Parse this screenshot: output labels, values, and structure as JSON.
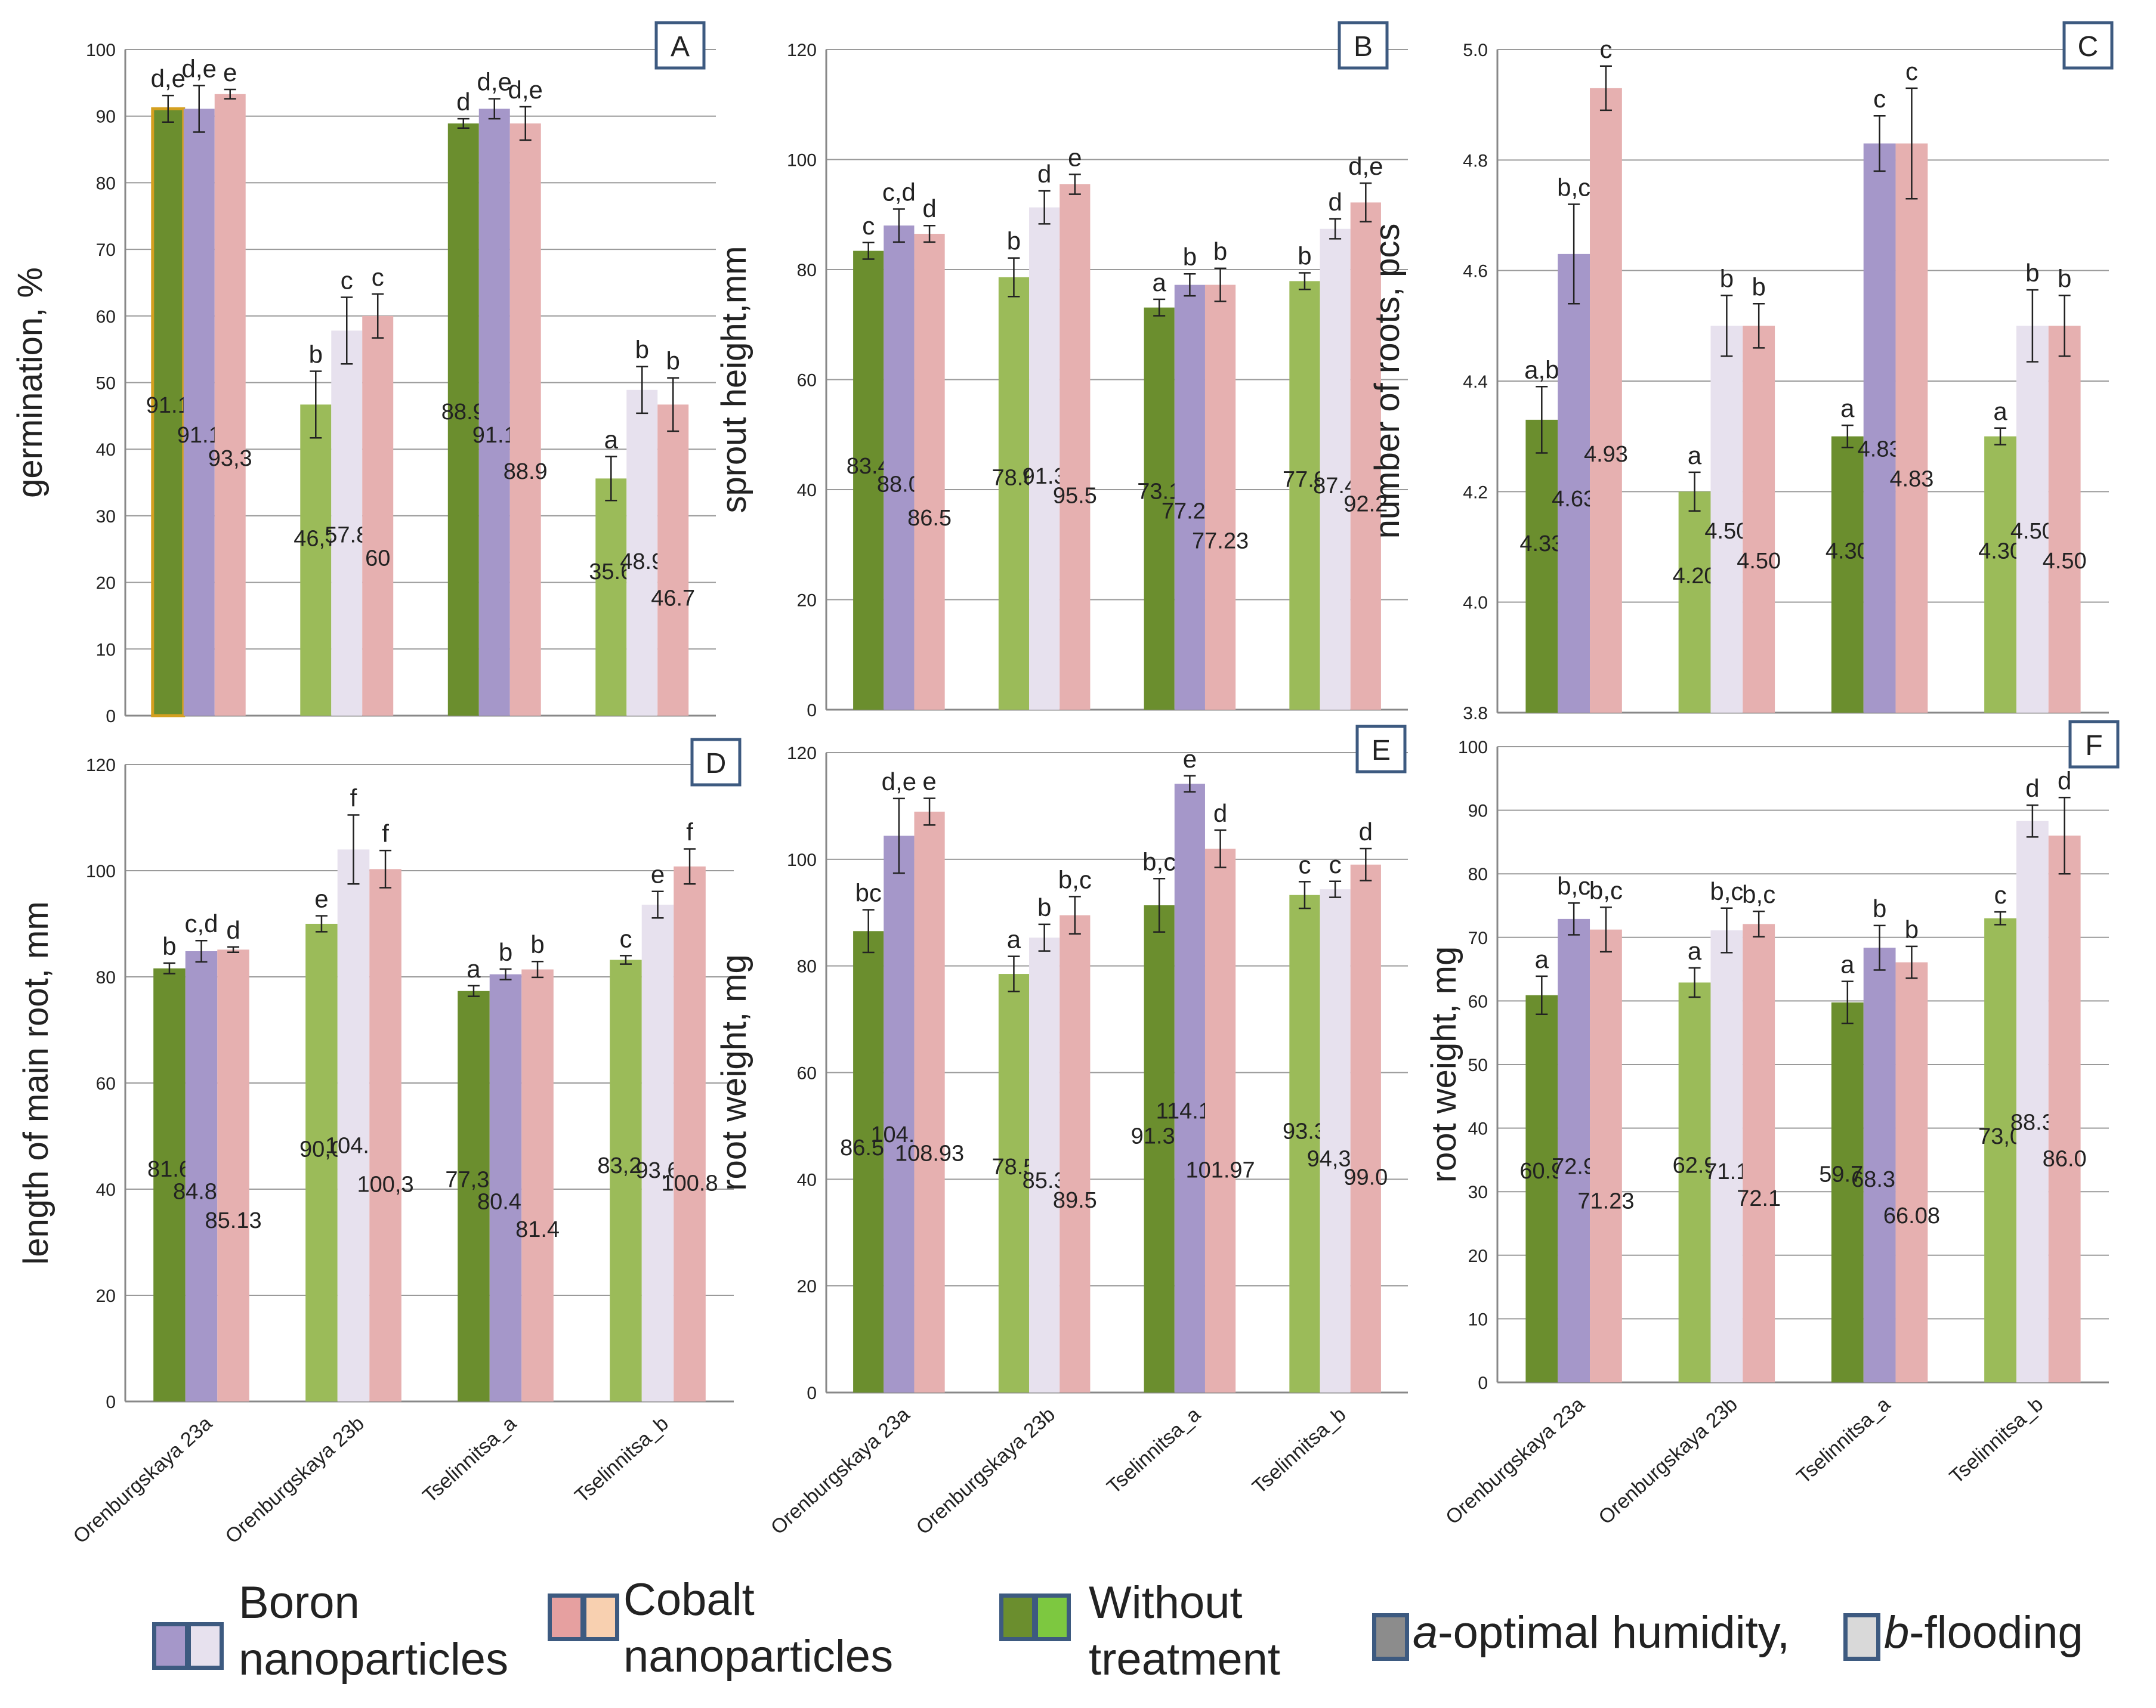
{
  "chart_data": [
    {
      "panel": "A",
      "type": "bar",
      "ylabel": "germination, %",
      "ylim": [
        0,
        100
      ],
      "yticks": [
        0,
        10,
        20,
        30,
        40,
        50,
        60,
        70,
        80,
        90,
        100
      ],
      "categories": [
        "Orenburgskaya 23a",
        "Orenburgskaya 23b",
        "Tselinnitsa_a",
        "Tselinnitsa_b"
      ],
      "series": [
        {
          "name": "Without treatment",
          "values": [
            91.1,
            46.7,
            88.9,
            35.6
          ],
          "value_labels": [
            "91.1",
            "46,7",
            "88.9",
            "35.6"
          ],
          "letters": [
            "d,e",
            "b",
            "d",
            "a"
          ],
          "err": [
            2,
            5,
            0.7,
            3.3
          ]
        },
        {
          "name": "Boron nanoparticles",
          "values": [
            91.1,
            57.8,
            91.1,
            48.9
          ],
          "value_labels": [
            "91.1",
            "57.8",
            "91.1",
            "48.9"
          ],
          "letters": [
            "d,e",
            "c",
            "d,e",
            "b"
          ],
          "err": [
            3.5,
            5,
            1.5,
            3.5
          ]
        },
        {
          "name": "Cobalt nanoparticles",
          "values": [
            93.3,
            60,
            88.9,
            46.7
          ],
          "value_labels": [
            "93,3",
            "60",
            "88.9",
            "46.7"
          ],
          "letters": [
            "e",
            "c",
            "d,e",
            "b"
          ],
          "err": [
            0.7,
            3.3,
            2.5,
            4
          ]
        }
      ]
    },
    {
      "panel": "B",
      "type": "bar",
      "ylabel": "sprout height,mm",
      "ylim": [
        0,
        120
      ],
      "yticks": [
        0,
        20,
        40,
        60,
        80,
        100,
        120
      ],
      "categories": [
        "Orenburgskaya 23a",
        "Orenburgskaya 23b",
        "Tselinnitsa_a",
        "Tselinnitsa_b"
      ],
      "series": [
        {
          "name": "Without treatment",
          "values": [
            83.4,
            78.6,
            73.1,
            77.9
          ],
          "value_labels": [
            "83.4",
            "78.6",
            "73.1",
            "77.9"
          ],
          "letters": [
            "c",
            "b",
            "a",
            "b"
          ],
          "err": [
            1.5,
            3.5,
            1.5,
            1.5
          ]
        },
        {
          "name": "Boron nanoparticles",
          "values": [
            88.0,
            91.3,
            77.22,
            87.4
          ],
          "value_labels": [
            "88.0",
            "91.3",
            "77.22",
            "87.4"
          ],
          "letters": [
            "c,d",
            "d",
            "b",
            "d"
          ],
          "err": [
            3,
            3,
            2,
            1.8
          ]
        },
        {
          "name": "Cobalt nanoparticles",
          "values": [
            86.5,
            95.5,
            77.23,
            92.2
          ],
          "value_labels": [
            "86.5",
            "95.5",
            "77.23",
            "92.2"
          ],
          "letters": [
            "d",
            "e",
            "b",
            "d,e"
          ],
          "err": [
            1.5,
            1.8,
            3,
            3.5
          ]
        }
      ]
    },
    {
      "panel": "C",
      "type": "bar",
      "ylabel": "number of roots, pcs",
      "ylim": [
        3.8,
        5.0
      ],
      "yticks": [
        3.8,
        4.0,
        4.2,
        4.4,
        4.6,
        4.8,
        5.0
      ],
      "categories": [
        "Orenburgskaya 23a",
        "Orenburgskaya 23b",
        "Tselinnitsa_a",
        "Tselinnitsa_b"
      ],
      "series": [
        {
          "name": "Without treatment",
          "values": [
            4.33,
            4.2,
            4.3,
            4.3
          ],
          "value_labels": [
            "4.33",
            "4.20",
            "4.30",
            "4.30"
          ],
          "letters": [
            "a,b",
            "a",
            "a",
            "a"
          ],
          "err": [
            0.06,
            0.035,
            0.02,
            0.015
          ]
        },
        {
          "name": "Boron nanoparticles",
          "values": [
            4.63,
            4.5,
            4.83,
            4.5
          ],
          "value_labels": [
            "4.63",
            "4.50",
            "4.83",
            "4.50"
          ],
          "letters": [
            "b,c",
            "b",
            "c",
            "b"
          ],
          "err": [
            0.09,
            0.055,
            0.05,
            0.065
          ]
        },
        {
          "name": "Cobalt nanoparticles",
          "values": [
            4.93,
            4.5,
            4.83,
            4.5
          ],
          "value_labels": [
            "4.93",
            "4.50",
            "4.83",
            "4.50"
          ],
          "letters": [
            "c",
            "b",
            "c",
            "b"
          ],
          "err": [
            0.04,
            0.04,
            0.1,
            0.055
          ]
        }
      ]
    },
    {
      "panel": "D",
      "type": "bar",
      "ylabel": "length of main root, mm",
      "ylim": [
        0,
        120
      ],
      "yticks": [
        0,
        20,
        40,
        60,
        80,
        100,
        120
      ],
      "categories": [
        "Orenburgskaya 23a",
        "Orenburgskaya 23b",
        "Tselinnitsa_a",
        "Tselinnitsa_b"
      ],
      "series": [
        {
          "name": "Without treatment",
          "values": [
            81.6,
            90.0,
            77.33,
            83.2
          ],
          "value_labels": [
            "81.6",
            "90,0",
            "77,33",
            "83,20"
          ],
          "letters": [
            "b",
            "e",
            "a",
            "c"
          ],
          "err": [
            1,
            1.5,
            1,
            0.8
          ]
        },
        {
          "name": "Boron nanoparticles",
          "values": [
            84.83,
            104.0,
            80.48,
            93.6
          ],
          "value_labels": [
            "84.83",
            "104.0",
            "80.48",
            "93.6"
          ],
          "letters": [
            "c,d",
            "f",
            "b",
            "e"
          ],
          "err": [
            2,
            6.5,
            1,
            2.5
          ]
        },
        {
          "name": "Cobalt nanoparticles",
          "values": [
            85.13,
            100.3,
            81.4,
            100.8
          ],
          "value_labels": [
            "85.13",
            "100,3",
            "81.4",
            "100.8"
          ],
          "letters": [
            "d",
            "f",
            "b",
            "f"
          ],
          "err": [
            0.5,
            3.5,
            1.5,
            3.3
          ]
        }
      ]
    },
    {
      "panel": "E",
      "type": "bar",
      "ylabel": "root weight, mg",
      "ylim": [
        0,
        120
      ],
      "yticks": [
        0,
        20,
        40,
        60,
        80,
        100,
        120
      ],
      "categories": [
        "Orenburgskaya 23a",
        "Orenburgskaya 23b",
        "Tselinnitsa_a",
        "Tselinnitsa_b"
      ],
      "series": [
        {
          "name": "Without treatment",
          "values": [
            86.53,
            78.5,
            91.37,
            93.3
          ],
          "value_labels": [
            "86.53",
            "78.5",
            "91.37",
            "93.3"
          ],
          "letters": [
            "bc",
            "a",
            "b,c",
            "c"
          ],
          "err": [
            4,
            3.3,
            5,
            2.5
          ]
        },
        {
          "name": "Boron nanoparticles",
          "values": [
            104.4,
            85.3,
            114.15,
            94.37
          ],
          "value_labels": [
            "104.4",
            "85.3",
            "114.15",
            "94,37"
          ],
          "letters": [
            "d,e",
            "b",
            "e",
            "c"
          ],
          "err": [
            7,
            2.5,
            1.5,
            1.5
          ]
        },
        {
          "name": "Cobalt nanoparticles",
          "values": [
            108.93,
            89.5,
            101.97,
            99.0
          ],
          "value_labels": [
            "108.93",
            "89.5",
            "101.97",
            "99.0"
          ],
          "letters": [
            "e",
            "b,c",
            "d",
            "d"
          ],
          "err": [
            2.5,
            3.5,
            3.5,
            3
          ]
        }
      ]
    },
    {
      "panel": "F",
      "type": "bar",
      "ylabel": "root weight, mg",
      "ylim": [
        0,
        100
      ],
      "yticks": [
        0,
        10,
        20,
        30,
        40,
        50,
        60,
        70,
        80,
        90,
        100
      ],
      "categories": [
        "Orenburgskaya 23a",
        "Orenburgskaya 23b",
        "Tselinnitsa_a",
        "Tselinnitsa_b"
      ],
      "series": [
        {
          "name": "Without treatment",
          "values": [
            60.9,
            62.9,
            59.77,
            73.0
          ],
          "value_labels": [
            "60.9",
            "62.9",
            "59.77",
            "73,0"
          ],
          "letters": [
            "a",
            "a",
            "a",
            "c"
          ],
          "err": [
            3,
            2.3,
            3.3,
            1
          ]
        },
        {
          "name": "Boron nanoparticles",
          "values": [
            72.9,
            71.1,
            68.37,
            88.3
          ],
          "value_labels": [
            "72.9",
            "71.1",
            "68.37",
            "88.3"
          ],
          "letters": [
            "b,c",
            "b,c",
            "b",
            "d"
          ],
          "err": [
            2.5,
            3.5,
            3.5,
            2.5
          ]
        },
        {
          "name": "Cobalt nanoparticles",
          "values": [
            71.23,
            72.1,
            66.08,
            86.0
          ],
          "value_labels": [
            "71.23",
            "72.1",
            "66.08",
            "86.0"
          ],
          "letters": [
            "b,c",
            "b,c",
            "b",
            "d"
          ],
          "err": [
            3.5,
            2,
            2.5,
            6
          ]
        }
      ]
    }
  ],
  "legend": {
    "boron": "Boron nanoparticles",
    "cobalt": "Cobalt nanoparticles",
    "without": "Without treatment",
    "humidity_prefix": "a",
    "humidity": "-optimal humidity,",
    "flooding_prefix": "b",
    "flooding": "-flooding"
  },
  "colors": {
    "without_a": "#6b8e2e",
    "without_b": "#9bbb59",
    "boron_a": "#a597c9",
    "boron_b": "#e7e1ee",
    "cobalt_a": "#e6b0b0",
    "cobalt_b": "#e6b0b0",
    "axis": "#888888",
    "grid": "#9a9a9a",
    "panel_border": "#3d5a80",
    "legend_border": "#3d5a80",
    "swatch_humidity": "#8c8c8c",
    "swatch_flooding": "#d9d9d9",
    "swatch_cobalt_b": "#f8d0b0",
    "swatch_without_b": "#7dc840"
  }
}
